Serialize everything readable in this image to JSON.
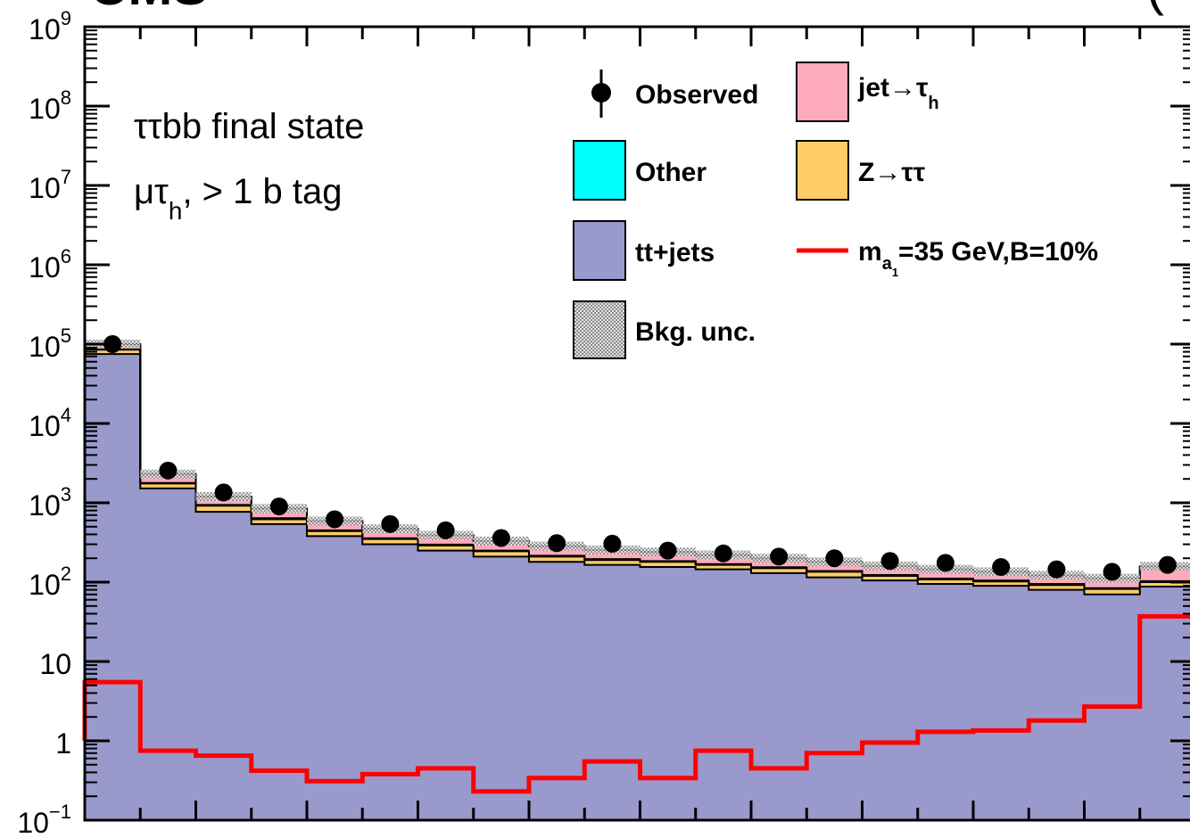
{
  "chart_data": {
    "type": "bar",
    "yscale": "log",
    "ylim": [
      0.1,
      1000000000
    ],
    "n_bins": 20,
    "title_left": "CMS",
    "title_right": "(",
    "annotations": {
      "line1": "ττbb final state",
      "line2_main": "μτ",
      "line2_sub": "h",
      "line2_rest": ", > 1 b tag"
    },
    "y_tick_labels": [
      {
        "value": 1000000000,
        "base": "10",
        "exp": "9"
      },
      {
        "value": 100000000,
        "base": "10",
        "exp": "8"
      },
      {
        "value": 10000000,
        "base": "10",
        "exp": "7"
      },
      {
        "value": 1000000,
        "base": "10",
        "exp": "6"
      },
      {
        "value": 100000,
        "base": "10",
        "exp": "5"
      },
      {
        "value": 10000,
        "base": "10",
        "exp": "4"
      },
      {
        "value": 1000,
        "base": "10",
        "exp": "3"
      },
      {
        "value": 100,
        "base": "10",
        "exp": "2"
      },
      {
        "value": 10,
        "base": "10",
        "exp": ""
      },
      {
        "value": 1,
        "base": "1",
        "exp": ""
      },
      {
        "value": 0.1,
        "base": "10",
        "exp": "−1"
      }
    ],
    "legend": {
      "observed": "Observed",
      "jet_tau_main": "jet→τ",
      "jet_tau_sub": "h",
      "other": "Other",
      "ztautau": "Z→ττ",
      "ttjets": "tt+jets",
      "signal_main": "m",
      "signal_sub": "a",
      "signal_subsub": "1",
      "signal_rest": "=35 GeV,B=10%",
      "bkg_unc": "Bkg. unc."
    },
    "colors": {
      "ttjets": "#9999cc",
      "ztautau": "#ffcc66",
      "jet_tau": "#ffaabb",
      "other": "#00ffff",
      "signal": "#ff0000",
      "observed": "#000000"
    },
    "series": [
      {
        "name": "tt+jets",
        "values": [
          75000,
          1520,
          770,
          540,
          380,
          300,
          250,
          210,
          180,
          165,
          155,
          145,
          130,
          115,
          105,
          95,
          90,
          80,
          70,
          88
        ]
      },
      {
        "name": "Z→ττ",
        "values": [
          85000,
          1750,
          920,
          620,
          440,
          350,
          290,
          245,
          210,
          190,
          180,
          165,
          150,
          135,
          120,
          108,
          102,
          92,
          82,
          100
        ]
      },
      {
        "name": "Other",
        "values": [
          85500,
          1780,
          940,
          640,
          450,
          358,
          297,
          250,
          215,
          195,
          184,
          169,
          154,
          138,
          123,
          111,
          105,
          95,
          84,
          103
        ]
      },
      {
        "name": "jet→τh",
        "values": [
          100000,
          2300,
          1200,
          850,
          590,
          470,
          390,
          330,
          285,
          255,
          240,
          220,
          200,
          180,
          160,
          145,
          135,
          122,
          112,
          158
        ]
      },
      {
        "name": "m_a1=35 GeV,B=10%",
        "values": [
          5.5,
          0.75,
          0.65,
          0.42,
          0.31,
          0.38,
          0.45,
          0.23,
          0.34,
          0.55,
          0.34,
          0.75,
          0.45,
          0.7,
          0.95,
          1.3,
          1.35,
          1.8,
          2.7,
          37
        ]
      },
      {
        "name": "Observed",
        "values": [
          100000,
          2550,
          1350,
          900,
          620,
          540,
          450,
          360,
          310,
          305,
          250,
          230,
          210,
          200,
          185,
          175,
          155,
          145,
          135,
          165
        ]
      }
    ],
    "grid": false
  }
}
